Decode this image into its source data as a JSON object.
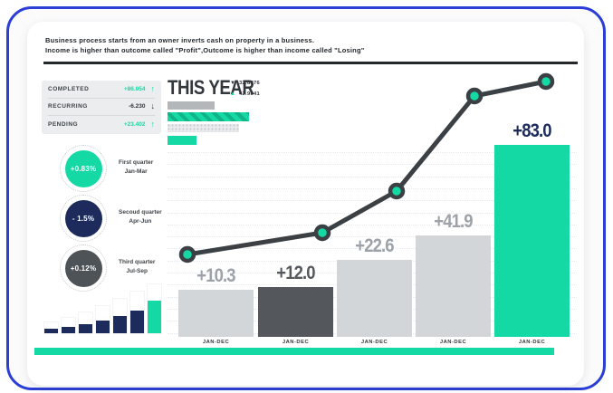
{
  "colors": {
    "accent": "#15d9a4",
    "navy": "#1c2b5b",
    "dark": "#2e3338",
    "frame_blue": "#2b3fd6",
    "bar_gray": "#d3d6d9",
    "bar_dark": "#54585c",
    "label_gray": "#9ca2a7",
    "panel_bg": "#ebedee"
  },
  "intro": {
    "line1": "Business process starts from an owner inverts cash on property in a business.",
    "line2": "Income is higher than outcome called \"Profit\",Outcome is higher than income called \"Losing\""
  },
  "stats": {
    "rows": [
      {
        "label": "COMPLETED",
        "value": "+86.054",
        "arrow": "↑",
        "trend": "up"
      },
      {
        "label": "RECURRING",
        "value": "-6.230",
        "arrow": "↓",
        "trend": "down"
      },
      {
        "label": "PENDING",
        "value": "+23.402",
        "arrow": "↑",
        "trend": "up"
      }
    ]
  },
  "quarters": {
    "items": [
      {
        "value": "+0.83%",
        "line1": "First quarter",
        "line2": "Jan-Mar",
        "color": "#15d9a4"
      },
      {
        "value": "- 1.5%",
        "line1": "Secoud quarter",
        "line2": "Apr-Jun",
        "color": "#1c2b5b"
      },
      {
        "value": "+0.12%",
        "line1": "Third quarter",
        "line2": "Jul-Sep",
        "color": "#4e5357"
      }
    ]
  },
  "this_year": {
    "title": "THIS YEAR",
    "legend": [
      {
        "marker": "▼",
        "value": "32.8876",
        "color": "#2e3338"
      },
      {
        "marker": "▲",
        "value": "42.9841",
        "color": "#15d9a4"
      }
    ],
    "progress_bars": [
      {
        "style": "solid",
        "color": "gray",
        "relative_width": 0.58
      },
      {
        "style": "hatched",
        "color": "green",
        "relative_width": 1.0
      },
      {
        "style": "dotted",
        "color": "light-gray",
        "relative_width": 0.88
      },
      {
        "style": "solid",
        "color": "green",
        "relative_width": 0.36
      }
    ]
  },
  "chart_data": [
    {
      "type": "bar",
      "title": "THIS YEAR",
      "categories": [
        "JAN-DEC",
        "JAN-DEC",
        "JAN-DEC",
        "JAN-DEC",
        "JAN-DEC"
      ],
      "values": [
        10.3,
        12.0,
        22.6,
        41.9,
        83.0
      ],
      "labels": [
        "+10.3",
        "+12.0",
        "+22.6",
        "+41.9",
        "+83.0"
      ],
      "bar_colors": [
        "#d3d6d9",
        "#54585c",
        "#d3d6d9",
        "#d3d6d9",
        "#15d9a4"
      ],
      "label_colors": [
        "#9ca2a7",
        "#55585c",
        "#9ca2a7",
        "#9ca2a7",
        "#1c2b5b"
      ],
      "grid": true,
      "legend_position": "top-right",
      "line_overlay": {
        "name": "trend",
        "estimated_values": [
          10,
          13,
          18,
          33,
          35
        ],
        "point_color": "#15d9a4",
        "line_color": "#3b4045"
      }
    },
    {
      "type": "bar",
      "title": "mini progress bars",
      "values": [
        12,
        17,
        23,
        30,
        38,
        46,
        54
      ],
      "sub_values": [
        5,
        7,
        10,
        14,
        19,
        25,
        36
      ],
      "highlight_last": true
    }
  ]
}
